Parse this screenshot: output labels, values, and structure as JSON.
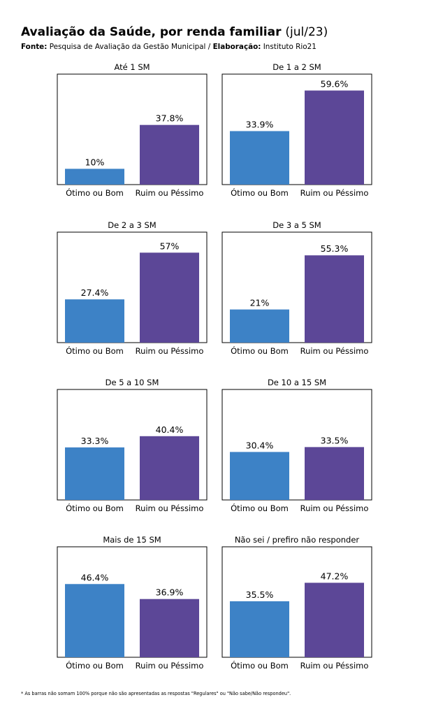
{
  "header": {
    "title": "Avaliação da Saúde, por renda familiar",
    "title_period": "(jul/23)",
    "source_label": "Fonte:",
    "source_text": "Pesquisa de Avaliação da Gestão Municipal /",
    "credit_label": "Elaboração:",
    "credit_text": "Instituto Rio21"
  },
  "footnote": "* As barras não somam 100% porque não são apresentadas as respostas \"Regulares\" ou \"Não sabe/Não respondeu\".",
  "colors": {
    "otimo_bom": "#3d82c6",
    "ruim_pessimo": "#5c4797"
  },
  "chart_data": [
    {
      "type": "bar",
      "title": "Até 1 SM",
      "categories": [
        "Ótimo ou Bom",
        "Ruim ou Péssimo"
      ],
      "values": [
        10,
        37.8
      ],
      "labels": [
        "10%",
        "37.8%"
      ],
      "ylim": [
        0,
        70
      ]
    },
    {
      "type": "bar",
      "title": "De 1 a 2 SM",
      "categories": [
        "Ótimo ou Bom",
        "Ruim ou Péssimo"
      ],
      "values": [
        33.9,
        59.6
      ],
      "labels": [
        "33.9%",
        "59.6%"
      ],
      "ylim": [
        0,
        70
      ]
    },
    {
      "type": "bar",
      "title": "De 2 a 3 SM",
      "categories": [
        "Ótimo ou Bom",
        "Ruim ou Péssimo"
      ],
      "values": [
        27.4,
        57
      ],
      "labels": [
        "27.4%",
        "57%"
      ],
      "ylim": [
        0,
        70
      ]
    },
    {
      "type": "bar",
      "title": "De 3 a 5 SM",
      "categories": [
        "Ótimo ou Bom",
        "Ruim ou Péssimo"
      ],
      "values": [
        21,
        55.3
      ],
      "labels": [
        "21%",
        "55.3%"
      ],
      "ylim": [
        0,
        70
      ]
    },
    {
      "type": "bar",
      "title": "De 5 a 10 SM",
      "categories": [
        "Ótimo ou Bom",
        "Ruim ou Péssimo"
      ],
      "values": [
        33.3,
        40.4
      ],
      "labels": [
        "33.3%",
        "40.4%"
      ],
      "ylim": [
        0,
        70
      ]
    },
    {
      "type": "bar",
      "title": "De 10 a 15 SM",
      "categories": [
        "Ótimo ou Bom",
        "Ruim ou Péssimo"
      ],
      "values": [
        30.4,
        33.5
      ],
      "labels": [
        "30.4%",
        "33.5%"
      ],
      "ylim": [
        0,
        70
      ]
    },
    {
      "type": "bar",
      "title": "Mais de 15 SM",
      "categories": [
        "Ótimo ou Bom",
        "Ruim ou Péssimo"
      ],
      "values": [
        46.4,
        36.9
      ],
      "labels": [
        "46.4%",
        "36.9%"
      ],
      "ylim": [
        0,
        70
      ]
    },
    {
      "type": "bar",
      "title": "Não sei / prefiro não responder",
      "categories": [
        "Ótimo ou Bom",
        "Ruim ou Péssimo"
      ],
      "values": [
        35.5,
        47.2
      ],
      "labels": [
        "35.5%",
        "47.2%"
      ],
      "ylim": [
        0,
        70
      ]
    }
  ]
}
